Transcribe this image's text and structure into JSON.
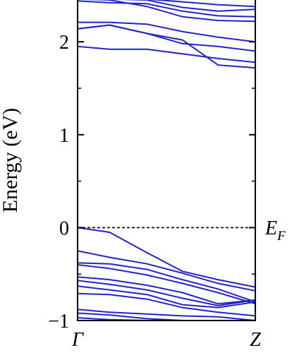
{
  "chart_data": {
    "type": "line",
    "title": "",
    "xlabel": "",
    "ylabel": "Energy (eV)",
    "x": [
      0,
      0.18,
      0.39,
      0.59,
      0.79,
      1.0
    ],
    "x_tick_labels": [
      "Γ",
      "Z"
    ],
    "x_tick_positions": [
      0,
      1
    ],
    "ylim": [
      -1.0,
      2.45
    ],
    "y_ticks": [
      -1,
      0,
      1,
      2
    ],
    "y_tick_labels": [
      "−1",
      "0",
      "1",
      "2"
    ],
    "fermi_level": 0,
    "fermi_label_main": "E",
    "fermi_label_sub": "F",
    "line_color": "#2323c8",
    "fermi_line_color": "#000000",
    "series": [
      {
        "values": [
          2.44,
          2.42,
          2.41,
          2.33,
          2.28,
          2.27
        ]
      },
      {
        "values": [
          2.46,
          2.46,
          2.46,
          2.43,
          2.4,
          2.38
        ]
      },
      {
        "values": [
          2.46,
          2.46,
          2.45,
          2.37,
          2.33,
          2.35
        ]
      },
      {
        "values": [
          2.46,
          2.45,
          2.38,
          2.27,
          2.23,
          2.22
        ]
      },
      {
        "values": [
          2.21,
          2.21,
          2.19,
          2.11,
          2.05,
          2.0
        ]
      },
      {
        "values": [
          2.14,
          2.18,
          2.09,
          1.98,
          1.95,
          1.9
        ]
      },
      {
        "values": [
          1.95,
          1.92,
          1.92,
          1.87,
          1.82,
          1.78
        ]
      },
      {
        "values": [
          2.14,
          2.18,
          2.09,
          2.02,
          1.75,
          1.72
        ]
      },
      {
        "values": [
          0.0,
          -0.05,
          -0.27,
          -0.47,
          -0.56,
          -0.64
        ]
      },
      {
        "values": [
          -0.25,
          -0.32,
          -0.39,
          -0.49,
          -0.6,
          -0.68
        ]
      },
      {
        "values": [
          -0.38,
          -0.39,
          -0.45,
          -0.56,
          -0.66,
          -0.8
        ]
      },
      {
        "values": [
          -0.4,
          -0.44,
          -0.51,
          -0.6,
          -0.7,
          -0.82
        ]
      },
      {
        "values": [
          -0.53,
          -0.56,
          -0.62,
          -0.7,
          -0.82,
          -0.78
        ]
      },
      {
        "values": [
          -0.57,
          -0.61,
          -0.67,
          -0.76,
          -0.84,
          -0.78
        ]
      },
      {
        "values": [
          -0.63,
          -0.67,
          -0.72,
          -0.83,
          -0.86,
          -0.8
        ]
      },
      {
        "values": [
          -0.71,
          -0.72,
          -0.77,
          -0.86,
          -0.91,
          -0.95
        ]
      },
      {
        "values": [
          -0.88,
          -0.91,
          -0.93,
          -0.95,
          -0.96,
          -1.0
        ]
      },
      {
        "values": [
          -0.92,
          -0.94,
          -0.98,
          -1.0,
          -1.0,
          -1.0
        ]
      },
      {
        "values": [
          -0.97,
          -0.99,
          -1.0,
          -1.0,
          -1.0,
          -1.0
        ]
      }
    ]
  }
}
